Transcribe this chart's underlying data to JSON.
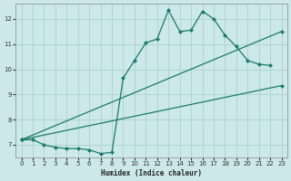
{
  "xlabel": "Humidex (Indice chaleur)",
  "bg_color": "#cce8e8",
  "grid_color": "#b0d4d4",
  "line_color": "#1a7a6e",
  "xlim": [
    -0.5,
    23.5
  ],
  "ylim": [
    6.5,
    12.6
  ],
  "xticks": [
    0,
    1,
    2,
    3,
    4,
    5,
    6,
    7,
    8,
    9,
    10,
    11,
    12,
    13,
    14,
    15,
    16,
    17,
    18,
    19,
    20,
    21,
    22,
    23
  ],
  "yticks": [
    7,
    8,
    9,
    10,
    11,
    12
  ],
  "line1_x": [
    0,
    1,
    2,
    3,
    4,
    5,
    6,
    7,
    8,
    9,
    10,
    11,
    12,
    13,
    14,
    15,
    16,
    17,
    18,
    19,
    20,
    21,
    22
  ],
  "line1_y": [
    7.2,
    7.2,
    7.0,
    6.9,
    6.85,
    6.85,
    6.8,
    6.65,
    6.7,
    9.65,
    10.35,
    11.05,
    11.2,
    12.35,
    11.5,
    11.55,
    12.3,
    12.0,
    11.35,
    10.9,
    10.35,
    10.2,
    10.15
  ],
  "line2_x": [
    0,
    23
  ],
  "line2_y": [
    7.2,
    9.35
  ],
  "line3_x": [
    0,
    23
  ],
  "line3_y": [
    7.2,
    11.5
  ]
}
